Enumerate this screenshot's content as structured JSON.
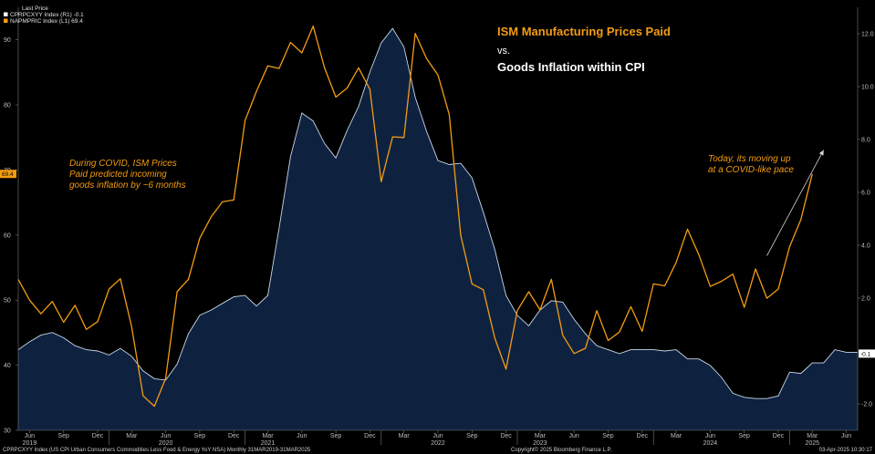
{
  "chart_data": {
    "type": "line",
    "title": "ISM Manufacturing Prices Paid",
    "vs_label": "vs.",
    "subtitle": "Goods Inflation within CPI",
    "legend": {
      "title": "Last Price",
      "entries": [
        {
          "label": "CPRPCXYY Index (R1) -0.1",
          "color": "#ffffff"
        },
        {
          "label": "NAPMPRIC Index (L1) 69.4",
          "color": "#f39c12"
        }
      ]
    },
    "series": [
      {
        "name": "CPRPCXYY Index (R1)",
        "axis": "right",
        "style": "area",
        "color": "#c9d6e6",
        "fill": "#0e2240",
        "x_start": "2019-05",
        "values": [
          0.05,
          0.35,
          0.6,
          0.7,
          0.5,
          0.2,
          0.05,
          0.0,
          -0.15,
          0.1,
          -0.2,
          -0.75,
          -1.05,
          -1.1,
          -0.5,
          0.65,
          1.35,
          1.55,
          1.8,
          2.05,
          2.1,
          1.7,
          2.1,
          4.65,
          7.35,
          9.0,
          8.7,
          7.85,
          7.3,
          8.35,
          9.25,
          10.55,
          11.65,
          12.2,
          11.5,
          9.6,
          8.3,
          7.2,
          7.05,
          7.1,
          6.55,
          5.25,
          3.85,
          2.1,
          1.35,
          0.95,
          1.55,
          1.9,
          1.85,
          1.2,
          0.65,
          0.2,
          0.05,
          -0.1,
          0.05,
          0.05,
          0.05,
          0.0,
          0.05,
          -0.3,
          -0.3,
          -0.55,
          -1.0,
          -1.6,
          -1.75,
          -1.8,
          -1.8,
          -1.7,
          -0.8,
          -0.85,
          -0.45,
          -0.45,
          0.05,
          -0.05,
          -0.05
        ]
      },
      {
        "name": "NAPMPRIC Index (L1)",
        "axis": "left",
        "style": "line",
        "color": "#f39c12",
        "x_start": "2019-05",
        "values": [
          53.2,
          50.0,
          47.9,
          49.8,
          46.6,
          49.2,
          45.5,
          46.7,
          51.7,
          53.3,
          45.9,
          35.3,
          33.7,
          38.0,
          51.3,
          53.2,
          59.5,
          62.8,
          65.1,
          65.4,
          77.6,
          82.1,
          86.0,
          85.6,
          89.6,
          88.0,
          92.1,
          85.7,
          81.2,
          82.6,
          85.7,
          82.4,
          68.2,
          75.1,
          75.0,
          91.0,
          87.1,
          84.6,
          78.5,
          60.0,
          52.5,
          51.6,
          44.2,
          39.4,
          48.4,
          51.3,
          48.5,
          53.2,
          44.6,
          41.8,
          42.6,
          48.4,
          43.8,
          45.1,
          49.0,
          45.2,
          52.5,
          52.2,
          55.8,
          60.9,
          57.0,
          52.1,
          52.9,
          54.0,
          48.9,
          54.8,
          50.3,
          51.7,
          58.2,
          62.4,
          69.4
        ]
      }
    ],
    "left_axis": {
      "min": 30,
      "max": 95,
      "ticks": [
        "30",
        "40",
        "50",
        "60",
        "70",
        "80",
        "90"
      ],
      "last_value": "69.4"
    },
    "right_axis": {
      "min": -3,
      "max": 13,
      "ticks": [
        "-2.0",
        "2.0",
        "4.0",
        "6.0",
        "8.0",
        "10.0",
        "12.0"
      ],
      "last_value": "-0.1"
    },
    "x_axis": {
      "range": [
        "2019-05",
        "2025-07"
      ],
      "month_labels": [
        {
          "date": "2019-06",
          "text": "Jun"
        },
        {
          "date": "2019-09",
          "text": "Sep"
        },
        {
          "date": "2019-12",
          "text": "Dec"
        },
        {
          "date": "2020-03",
          "text": "Mar"
        },
        {
          "date": "2020-06",
          "text": "Jun"
        },
        {
          "date": "2020-09",
          "text": "Sep"
        },
        {
          "date": "2020-12",
          "text": "Dec"
        },
        {
          "date": "2021-03",
          "text": "Mar"
        },
        {
          "date": "2021-06",
          "text": "Jun"
        },
        {
          "date": "2021-09",
          "text": "Sep"
        },
        {
          "date": "2021-12",
          "text": "Dec"
        },
        {
          "date": "2022-03",
          "text": "Mar"
        },
        {
          "date": "2022-06",
          "text": "Jun"
        },
        {
          "date": "2022-09",
          "text": "Sep"
        },
        {
          "date": "2022-12",
          "text": "Dec"
        },
        {
          "date": "2023-03",
          "text": "Mar"
        },
        {
          "date": "2023-06",
          "text": "Jun"
        },
        {
          "date": "2023-09",
          "text": "Sep"
        },
        {
          "date": "2023-12",
          "text": "Dec"
        },
        {
          "date": "2024-03",
          "text": "Mar"
        },
        {
          "date": "2024-06",
          "text": "Jun"
        },
        {
          "date": "2024-09",
          "text": "Sep"
        },
        {
          "date": "2024-12",
          "text": "Dec"
        },
        {
          "date": "2025-03",
          "text": "Mar"
        },
        {
          "date": "2025-06",
          "text": "Jun"
        }
      ],
      "year_labels": [
        {
          "date": "2019-06",
          "text": "2019"
        },
        {
          "date": "2020-06",
          "text": "2020"
        },
        {
          "date": "2021-03",
          "text": "2021"
        },
        {
          "date": "2022-06",
          "text": "2022"
        },
        {
          "date": "2023-03",
          "text": "2023"
        },
        {
          "date": "2024-06",
          "text": "2024"
        },
        {
          "date": "2025-03",
          "text": "2025"
        }
      ]
    },
    "grid": false,
    "annotations": [
      {
        "id": "covid",
        "lines": [
          "During COVID, ISM Prices",
          "Paid predicted incoming",
          "goods inflation by ~6 months"
        ],
        "color": "#f39c12"
      },
      {
        "id": "today",
        "lines": [
          "Today, its moving up",
          "at a COVID-like pace"
        ],
        "color": "#f39c12"
      }
    ],
    "arrow": {
      "from": {
        "date": "2024-11",
        "right_value": 3.6
      },
      "to": {
        "date": "2025-04",
        "right_value": 7.6
      }
    }
  },
  "footer": {
    "left": "CPRPCXYY Index (US CPI Urban Consumers Commodities Less Food & Energy YoY NSA)  Monthly 31MAR2019-31MAR2025",
    "center": "Copyright© 2025 Bloomberg Finance L.P.",
    "right": "03-Apr-2025 10:30:17"
  }
}
